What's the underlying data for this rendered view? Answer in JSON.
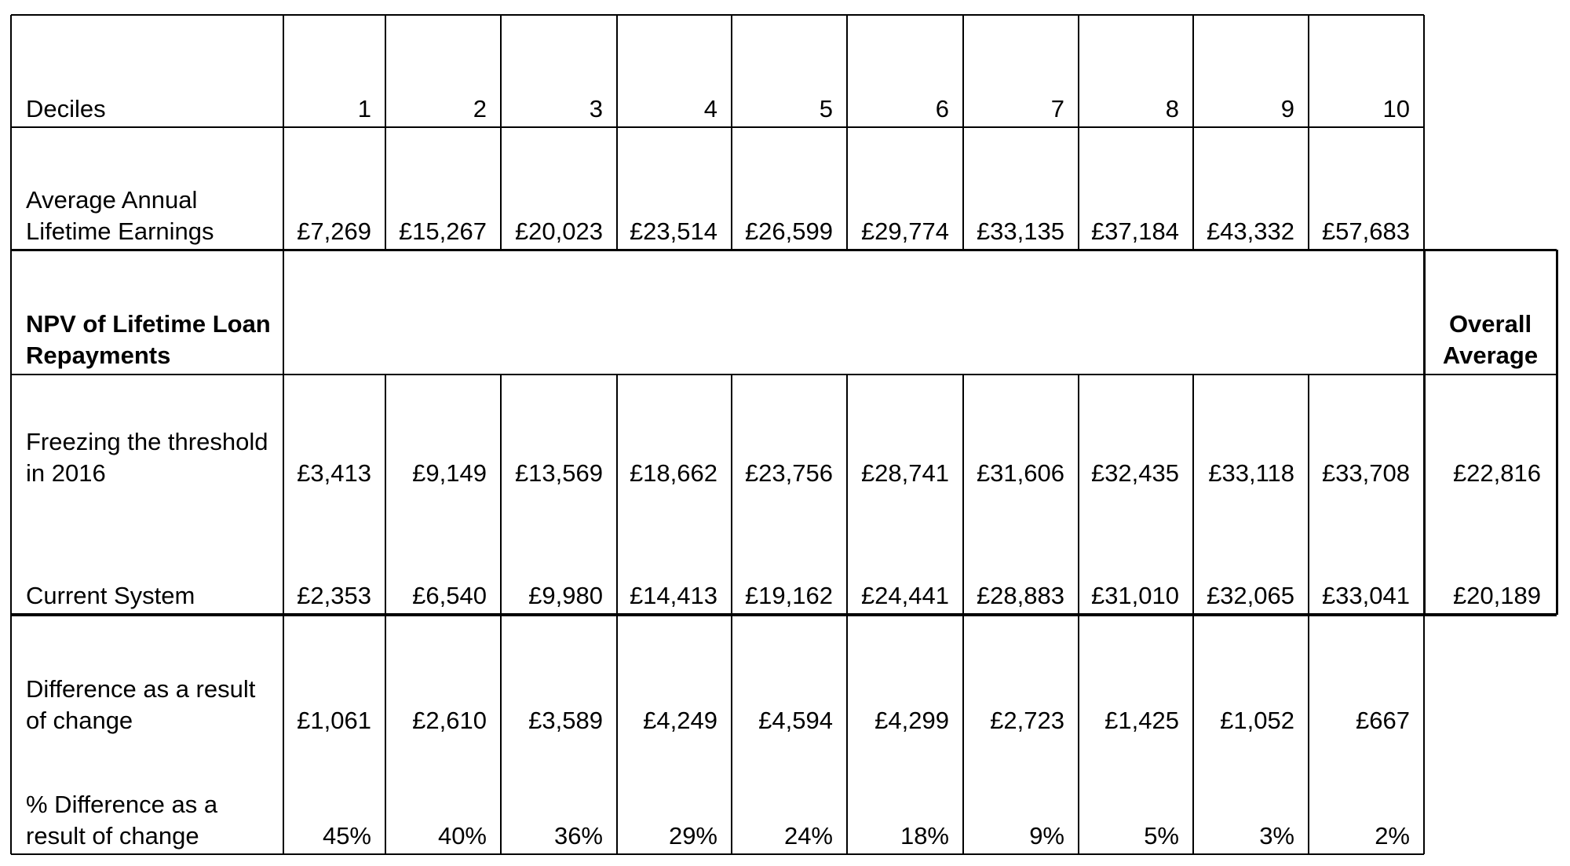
{
  "table": {
    "deciles": {
      "label": "Deciles",
      "values": [
        "1",
        "2",
        "3",
        "4",
        "5",
        "6",
        "7",
        "8",
        "9",
        "10"
      ]
    },
    "earnings": {
      "label_line1": "Average Annual",
      "label_line2": "Lifetime Earnings",
      "values": [
        "£7,269",
        "£15,267",
        "£20,023",
        "£23,514",
        "£26,599",
        "£29,774",
        "£33,135",
        "£37,184",
        "£43,332",
        "£57,683"
      ]
    },
    "npv_header": {
      "label_line1": "NPV of Lifetime Loan",
      "label_line2": "Repayments",
      "overall_line1": "Overall",
      "overall_line2": "Average"
    },
    "freezing": {
      "label_line1": "Freezing the threshold",
      "label_line2": "in 2016",
      "values": [
        "£3,413",
        "£9,149",
        "£13,569",
        "£18,662",
        "£23,756",
        "£28,741",
        "£31,606",
        "£32,435",
        "£33,118",
        "£33,708"
      ],
      "overall": "£22,816"
    },
    "current": {
      "label": "Current System",
      "values": [
        "£2,353",
        "£6,540",
        "£9,980",
        "£14,413",
        "£19,162",
        "£24,441",
        "£28,883",
        "£31,010",
        "£32,065",
        "£33,041"
      ],
      "overall": "£20,189"
    },
    "difference": {
      "label_line1": "Difference as a result",
      "label_line2": "of change",
      "values": [
        "£1,061",
        "£2,610",
        "£3,589",
        "£4,249",
        "£4,594",
        "£4,299",
        "£2,723",
        "£1,425",
        "£1,052",
        "£667"
      ]
    },
    "pct_difference": {
      "label_line1": "% Difference as a",
      "label_line2": "result of change",
      "values": [
        "45%",
        "40%",
        "36%",
        "29%",
        "24%",
        "18%",
        "9%",
        "5%",
        "3%",
        "2%"
      ]
    }
  }
}
